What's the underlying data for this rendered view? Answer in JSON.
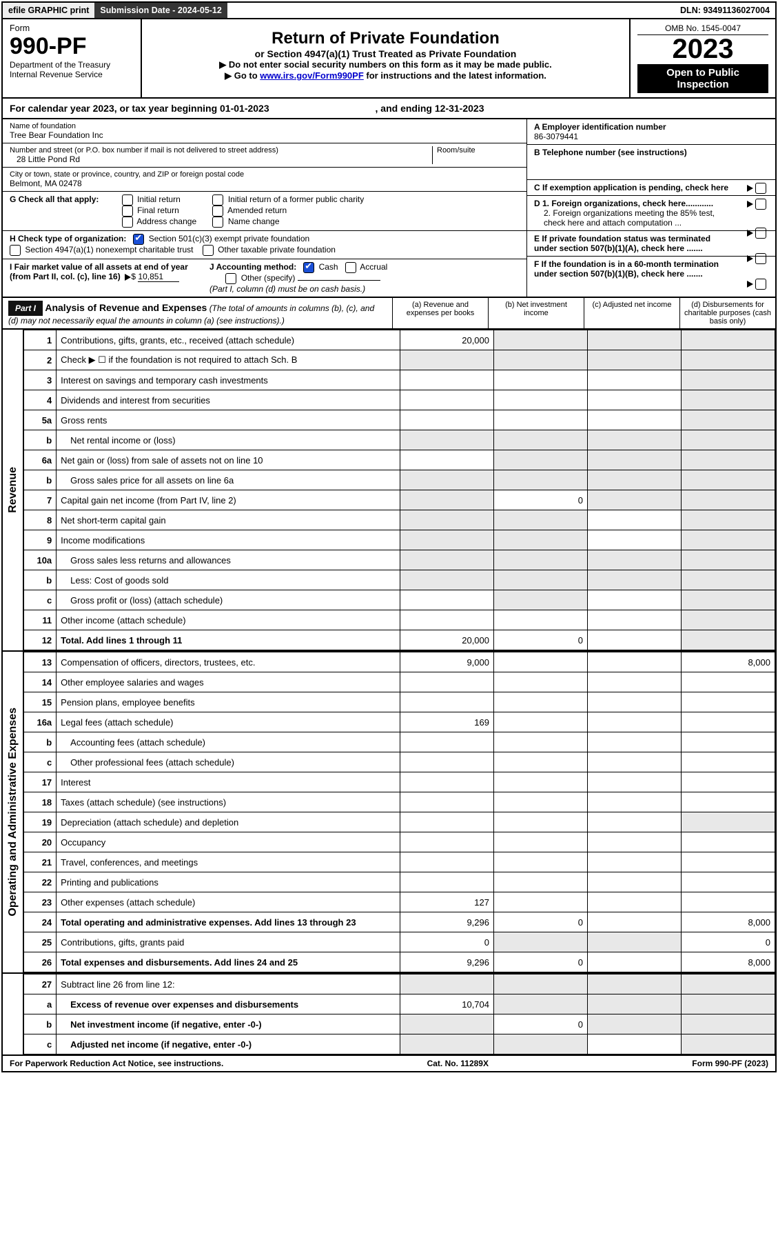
{
  "topbar": {
    "efile": "efile GRAPHIC print",
    "submission_label": "Submission Date - 2024-05-12",
    "dln": "DLN: 93491136027004"
  },
  "header": {
    "form_label": "Form",
    "form_number": "990-PF",
    "dept1": "Department of the Treasury",
    "dept2": "Internal Revenue Service",
    "title": "Return of Private Foundation",
    "subtitle": "or Section 4947(a)(1) Trust Treated as Private Foundation",
    "note1": "▶ Do not enter social security numbers on this form as it may be made public.",
    "note2_pre": "▶ Go to ",
    "note2_link": "www.irs.gov/Form990PF",
    "note2_post": " for instructions and the latest information.",
    "omb": "OMB No. 1545-0047",
    "year": "2023",
    "open": "Open to Public Inspection"
  },
  "calyear": {
    "text_pre": "For calendar year 2023, or tax year beginning ",
    "begin": "01-01-2023",
    "text_mid": " , and ending ",
    "end": "12-31-2023"
  },
  "entity": {
    "name_label": "Name of foundation",
    "name": "Tree Bear Foundation Inc",
    "addr_label": "Number and street (or P.O. box number if mail is not delivered to street address)",
    "addr": "28 Little Pond Rd",
    "room_label": "Room/suite",
    "room": "",
    "city_label": "City or town, state or province, country, and ZIP or foreign postal code",
    "city": "Belmont, MA  02478",
    "ein_label": "A Employer identification number",
    "ein": "86-3079441",
    "phone_label": "B Telephone number (see instructions)",
    "phone": "",
    "c_label": "C If exemption application is pending, check here"
  },
  "g": {
    "label": "G Check all that apply:",
    "opts": [
      "Initial return",
      "Final return",
      "Address change",
      "Initial return of a former public charity",
      "Amended return",
      "Name change"
    ]
  },
  "h": {
    "label": "H Check type of organization:",
    "opt1": "Section 501(c)(3) exempt private foundation",
    "opt2": "Section 4947(a)(1) nonexempt charitable trust",
    "opt3": "Other taxable private foundation"
  },
  "d": {
    "d1": "D 1. Foreign organizations, check here............",
    "d2": "2. Foreign organizations meeting the 85% test, check here and attach computation ..."
  },
  "e": {
    "label": "E  If private foundation status was terminated under section 507(b)(1)(A), check here ......."
  },
  "f": {
    "label": "F  If the foundation is in a 60-month termination under section 507(b)(1)(B), check here ......."
  },
  "i": {
    "label": "I Fair market value of all assets at end of year (from Part II, col. (c), line 16)",
    "value": "10,851"
  },
  "j": {
    "label": "J Accounting method:",
    "cash": "Cash",
    "accrual": "Accrual",
    "other": "Other (specify)",
    "note": "(Part I, column (d) must be on cash basis.)"
  },
  "part1": {
    "label": "Part I",
    "title": "Analysis of Revenue and Expenses",
    "note": " (The total of amounts in columns (b), (c), and (d) may not necessarily equal the amounts in column (a) (see instructions).)",
    "col_a": "(a)   Revenue and expenses per books",
    "col_b": "(b)   Net investment income",
    "col_c": "(c)   Adjusted net income",
    "col_d": "(d)   Disbursements for charitable purposes (cash basis only)"
  },
  "side": {
    "revenue": "Revenue",
    "exp": "Operating and Administrative Expenses"
  },
  "rows": [
    {
      "n": "1",
      "lab": "Contributions, gifts, grants, etc., received (attach schedule)",
      "a": "20,000",
      "b": "",
      "c": "",
      "d": "",
      "sb": true,
      "sc": true,
      "sd": true
    },
    {
      "n": "2",
      "lab": "Check ▶ ☐ if the foundation is not required to attach Sch. B",
      "a": "",
      "b": "",
      "c": "",
      "d": "",
      "sa": true,
      "sb": true,
      "sc": true,
      "sd": true
    },
    {
      "n": "3",
      "lab": "Interest on savings and temporary cash investments",
      "a": "",
      "b": "",
      "c": "",
      "d": "",
      "sd": true
    },
    {
      "n": "4",
      "lab": "Dividends and interest from securities",
      "a": "",
      "b": "",
      "c": "",
      "d": "",
      "sd": true
    },
    {
      "n": "5a",
      "lab": "Gross rents",
      "a": "",
      "b": "",
      "c": "",
      "d": "",
      "sd": true
    },
    {
      "n": "b",
      "lab": "Net rental income or (loss)",
      "a": "",
      "b": "",
      "c": "",
      "d": "",
      "sa": true,
      "sb": true,
      "sc": true,
      "sd": true,
      "indent": true
    },
    {
      "n": "6a",
      "lab": "Net gain or (loss) from sale of assets not on line 10",
      "a": "",
      "b": "",
      "c": "",
      "d": "",
      "sb": true,
      "sc": true,
      "sd": true
    },
    {
      "n": "b",
      "lab": "Gross sales price for all assets on line 6a",
      "a": "",
      "b": "",
      "c": "",
      "d": "",
      "sa": true,
      "sb": true,
      "sc": true,
      "sd": true,
      "indent": true
    },
    {
      "n": "7",
      "lab": "Capital gain net income (from Part IV, line 2)",
      "a": "",
      "b": "0",
      "c": "",
      "d": "",
      "sa": true,
      "sc": true,
      "sd": true
    },
    {
      "n": "8",
      "lab": "Net short-term capital gain",
      "a": "",
      "b": "",
      "c": "",
      "d": "",
      "sa": true,
      "sb": true,
      "sd": true
    },
    {
      "n": "9",
      "lab": "Income modifications",
      "a": "",
      "b": "",
      "c": "",
      "d": "",
      "sa": true,
      "sb": true,
      "sd": true
    },
    {
      "n": "10a",
      "lab": "Gross sales less returns and allowances",
      "a": "",
      "b": "",
      "c": "",
      "d": "",
      "sa": true,
      "sb": true,
      "sc": true,
      "sd": true,
      "indent": true
    },
    {
      "n": "b",
      "lab": "Less: Cost of goods sold",
      "a": "",
      "b": "",
      "c": "",
      "d": "",
      "sa": true,
      "sb": true,
      "sc": true,
      "sd": true,
      "indent": true
    },
    {
      "n": "c",
      "lab": "Gross profit or (loss) (attach schedule)",
      "a": "",
      "b": "",
      "c": "",
      "d": "",
      "sb": true,
      "sd": true,
      "indent": true
    },
    {
      "n": "11",
      "lab": "Other income (attach schedule)",
      "a": "",
      "b": "",
      "c": "",
      "d": "",
      "sd": true
    },
    {
      "n": "12",
      "lab": "Total. Add lines 1 through 11",
      "a": "20,000",
      "b": "0",
      "c": "",
      "d": "",
      "sd": true,
      "bold": true
    }
  ],
  "rows2": [
    {
      "n": "13",
      "lab": "Compensation of officers, directors, trustees, etc.",
      "a": "9,000",
      "b": "",
      "c": "",
      "d": "8,000"
    },
    {
      "n": "14",
      "lab": "Other employee salaries and wages",
      "a": "",
      "b": "",
      "c": "",
      "d": ""
    },
    {
      "n": "15",
      "lab": "Pension plans, employee benefits",
      "a": "",
      "b": "",
      "c": "",
      "d": ""
    },
    {
      "n": "16a",
      "lab": "Legal fees (attach schedule)",
      "a": "169",
      "b": "",
      "c": "",
      "d": ""
    },
    {
      "n": "b",
      "lab": "Accounting fees (attach schedule)",
      "a": "",
      "b": "",
      "c": "",
      "d": "",
      "indent": true
    },
    {
      "n": "c",
      "lab": "Other professional fees (attach schedule)",
      "a": "",
      "b": "",
      "c": "",
      "d": "",
      "indent": true
    },
    {
      "n": "17",
      "lab": "Interest",
      "a": "",
      "b": "",
      "c": "",
      "d": ""
    },
    {
      "n": "18",
      "lab": "Taxes (attach schedule) (see instructions)",
      "a": "",
      "b": "",
      "c": "",
      "d": ""
    },
    {
      "n": "19",
      "lab": "Depreciation (attach schedule) and depletion",
      "a": "",
      "b": "",
      "c": "",
      "d": "",
      "sd": true
    },
    {
      "n": "20",
      "lab": "Occupancy",
      "a": "",
      "b": "",
      "c": "",
      "d": ""
    },
    {
      "n": "21",
      "lab": "Travel, conferences, and meetings",
      "a": "",
      "b": "",
      "c": "",
      "d": ""
    },
    {
      "n": "22",
      "lab": "Printing and publications",
      "a": "",
      "b": "",
      "c": "",
      "d": ""
    },
    {
      "n": "23",
      "lab": "Other expenses (attach schedule)",
      "a": "127",
      "b": "",
      "c": "",
      "d": ""
    },
    {
      "n": "24",
      "lab": "Total operating and administrative expenses. Add lines 13 through 23",
      "a": "9,296",
      "b": "0",
      "c": "",
      "d": "8,000",
      "bold": true
    },
    {
      "n": "25",
      "lab": "Contributions, gifts, grants paid",
      "a": "0",
      "b": "",
      "c": "",
      "d": "0",
      "sb": true,
      "sc": true
    },
    {
      "n": "26",
      "lab": "Total expenses and disbursements. Add lines 24 and 25",
      "a": "9,296",
      "b": "0",
      "c": "",
      "d": "8,000",
      "bold": true
    }
  ],
  "rows3": [
    {
      "n": "27",
      "lab": "Subtract line 26 from line 12:",
      "a": "",
      "b": "",
      "c": "",
      "d": "",
      "sa": true,
      "sb": true,
      "sc": true,
      "sd": true
    },
    {
      "n": "a",
      "lab": "Excess of revenue over expenses and disbursements",
      "a": "10,704",
      "b": "",
      "c": "",
      "d": "",
      "sb": true,
      "sc": true,
      "sd": true,
      "bold": true,
      "indent": true
    },
    {
      "n": "b",
      "lab": "Net investment income (if negative, enter -0-)",
      "a": "",
      "b": "0",
      "c": "",
      "d": "",
      "sa": true,
      "sc": true,
      "sd": true,
      "bold": true,
      "indent": true
    },
    {
      "n": "c",
      "lab": "Adjusted net income (if negative, enter -0-)",
      "a": "",
      "b": "",
      "c": "",
      "d": "",
      "sa": true,
      "sb": true,
      "sd": true,
      "bold": true,
      "indent": true
    }
  ],
  "footer": {
    "left": "For Paperwork Reduction Act Notice, see instructions.",
    "mid": "Cat. No. 11289X",
    "right": "Form 990-PF (2023)"
  }
}
